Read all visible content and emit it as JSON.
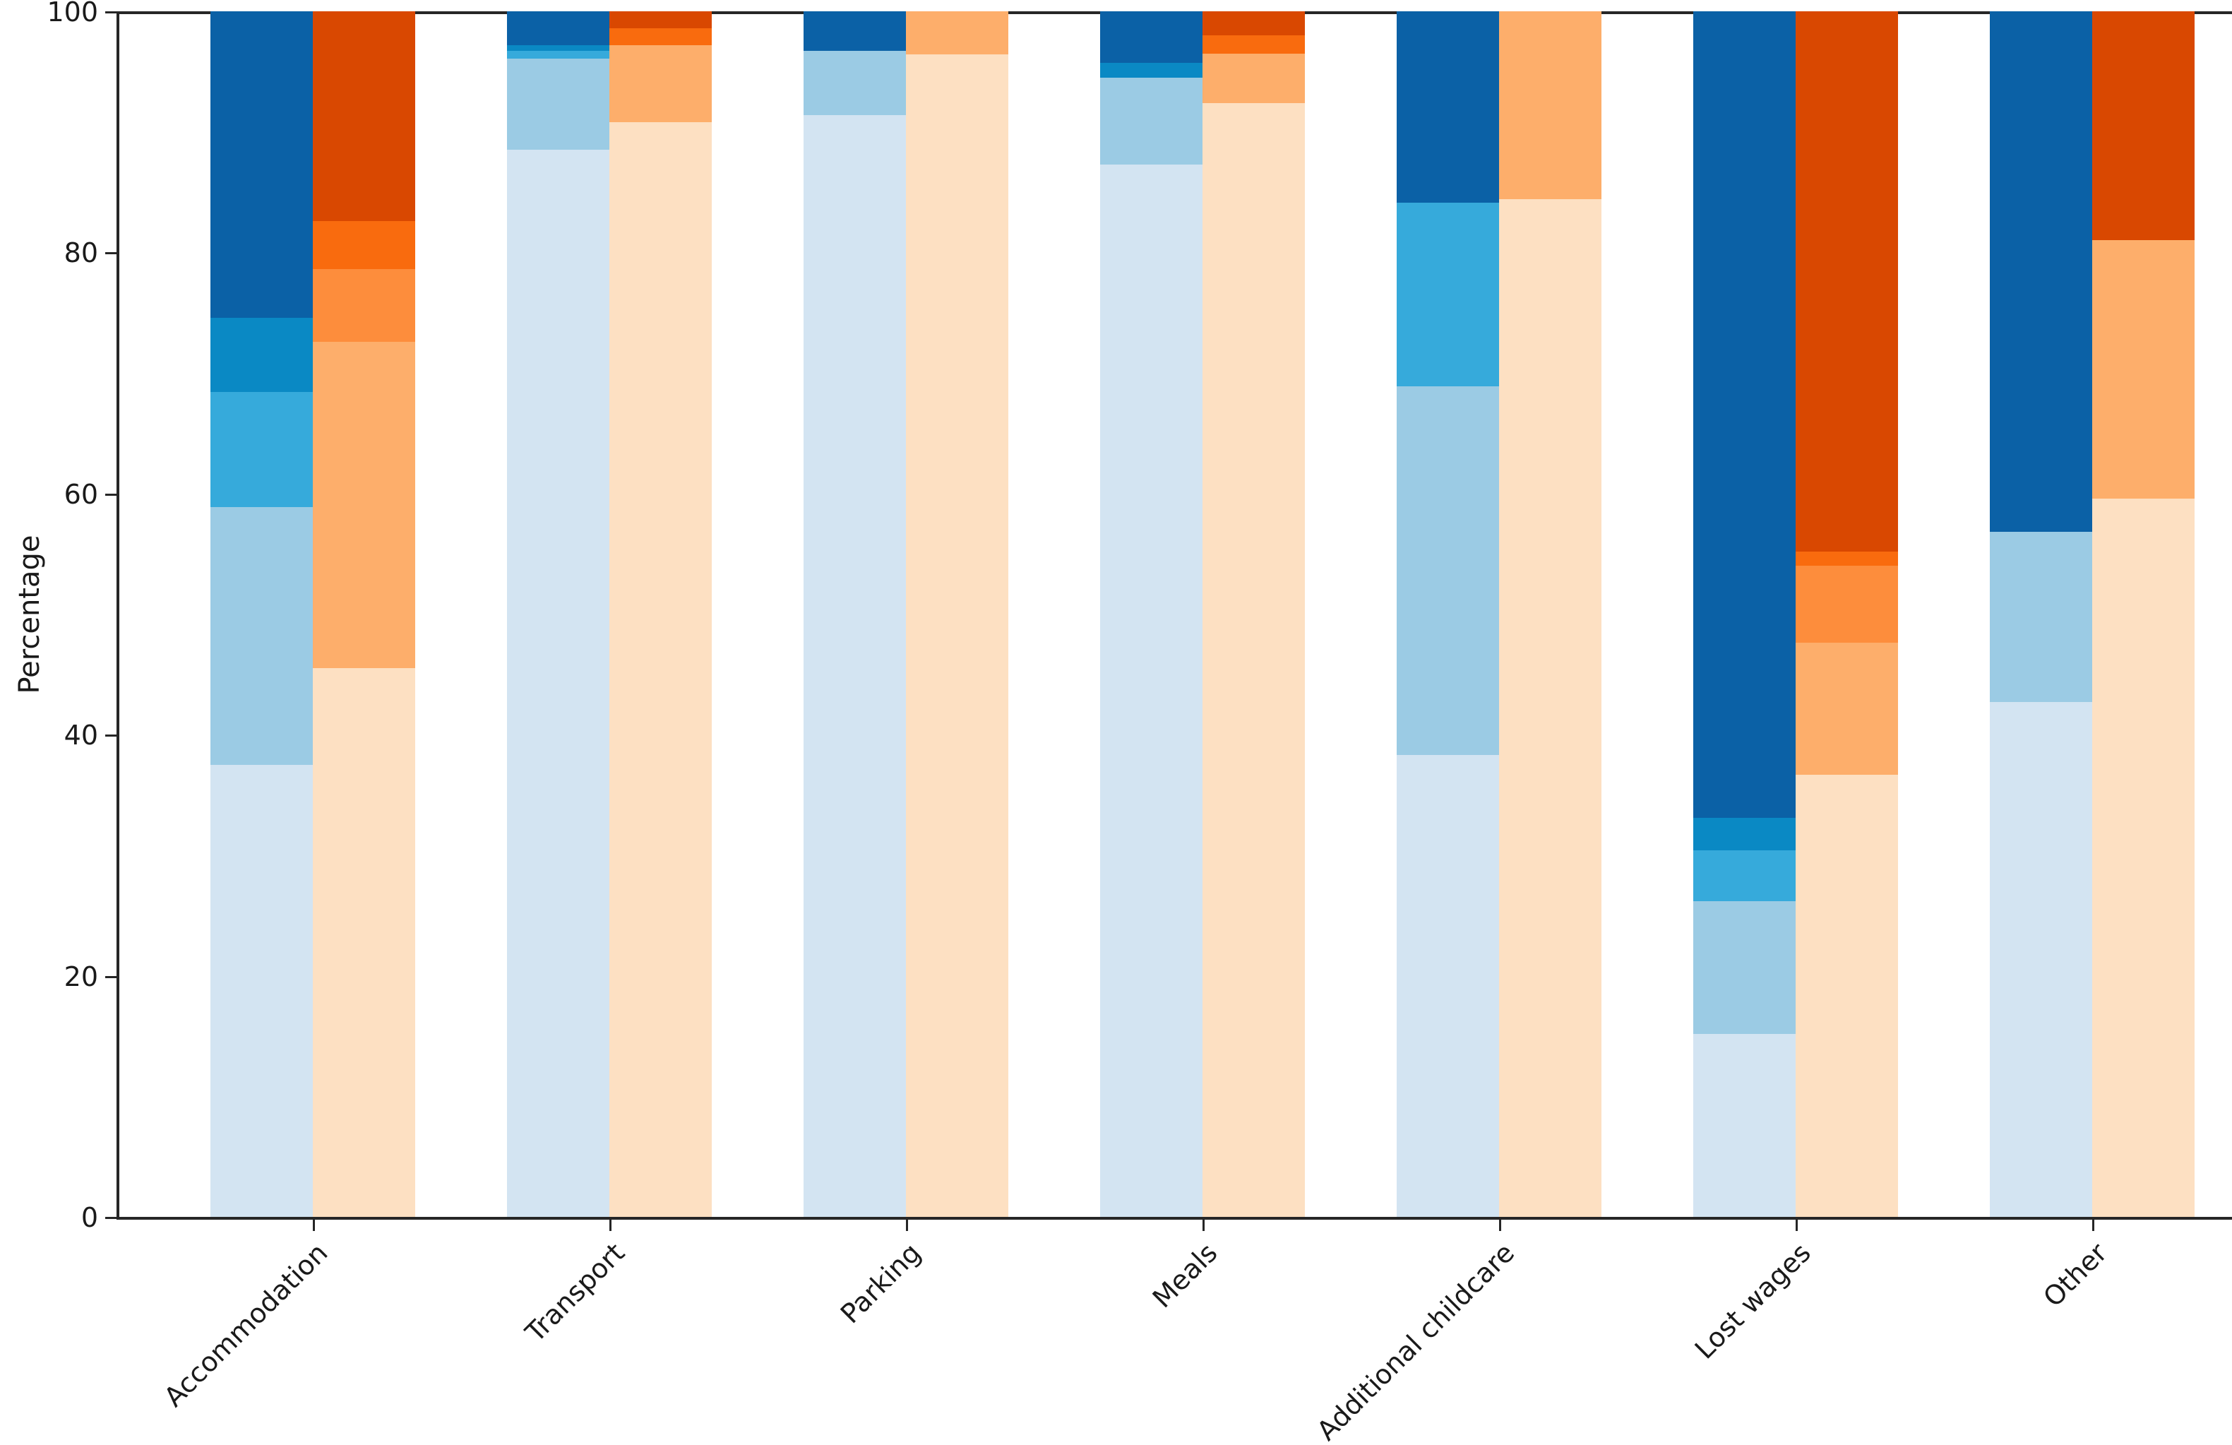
{
  "chart_data": {
    "type": "bar",
    "stacked": true,
    "title": "",
    "xlabel": "",
    "ylabel": "Percentage",
    "ylim": [
      0,
      100
    ],
    "yticks": [
      0,
      20,
      40,
      60,
      80,
      100
    ],
    "grid": false,
    "legend": "none",
    "categories": [
      "Accommodation",
      "Transport",
      "Parking",
      "Meals",
      "Additional childcare",
      "Lost wages",
      "Other"
    ],
    "palette": {
      "blues_bottom_to_top": [
        "#d3e4f2",
        "#9bcbe4",
        "#36aadb",
        "#0a89c4",
        "#0b61a6"
      ],
      "oranges_bottom_to_top": [
        "#fde0c2",
        "#fdae6b",
        "#fd8d3c",
        "#f96b0e",
        "#d94801"
      ],
      "axis": "#262626",
      "text": "#1a1a1a"
    },
    "series_groups": [
      {
        "name": "blue-stack",
        "bar_position": "left",
        "series": [
          {
            "name": "blue-level-1",
            "values": [
              37.5,
              88.5,
              91.4,
              87.3,
              38.3,
              15.2,
              42.7
            ]
          },
          {
            "name": "blue-level-2",
            "values": [
              21.4,
              7.6,
              5.3,
              7.2,
              30.6,
              11.0,
              14.1
            ]
          },
          {
            "name": "blue-level-3",
            "values": [
              9.5,
              0.6,
              0.0,
              0.0,
              15.2,
              4.2,
              0.0
            ]
          },
          {
            "name": "blue-level-4",
            "values": [
              6.2,
              0.5,
              0.0,
              1.2,
              0.0,
              2.7,
              0.0
            ]
          },
          {
            "name": "blue-level-5",
            "values": [
              25.4,
              2.8,
              3.3,
              4.3,
              15.9,
              66.9,
              43.2
            ]
          }
        ]
      },
      {
        "name": "orange-stack",
        "bar_position": "right",
        "series": [
          {
            "name": "orange-level-1",
            "values": [
              45.5,
              90.8,
              96.4,
              92.4,
              84.4,
              36.7,
              59.6
            ]
          },
          {
            "name": "orange-level-2",
            "values": [
              27.1,
              6.4,
              3.6,
              4.1,
              15.6,
              10.9,
              21.4
            ]
          },
          {
            "name": "orange-level-3",
            "values": [
              6.0,
              0.0,
              0.0,
              0.0,
              0.0,
              6.4,
              0.0
            ]
          },
          {
            "name": "orange-level-4",
            "values": [
              4.0,
              1.4,
              0.0,
              1.5,
              0.0,
              1.2,
              0.0
            ]
          },
          {
            "name": "orange-level-5",
            "values": [
              17.4,
              1.4,
              0.0,
              2.0,
              0.0,
              44.8,
              19.0
            ]
          }
        ]
      }
    ]
  }
}
